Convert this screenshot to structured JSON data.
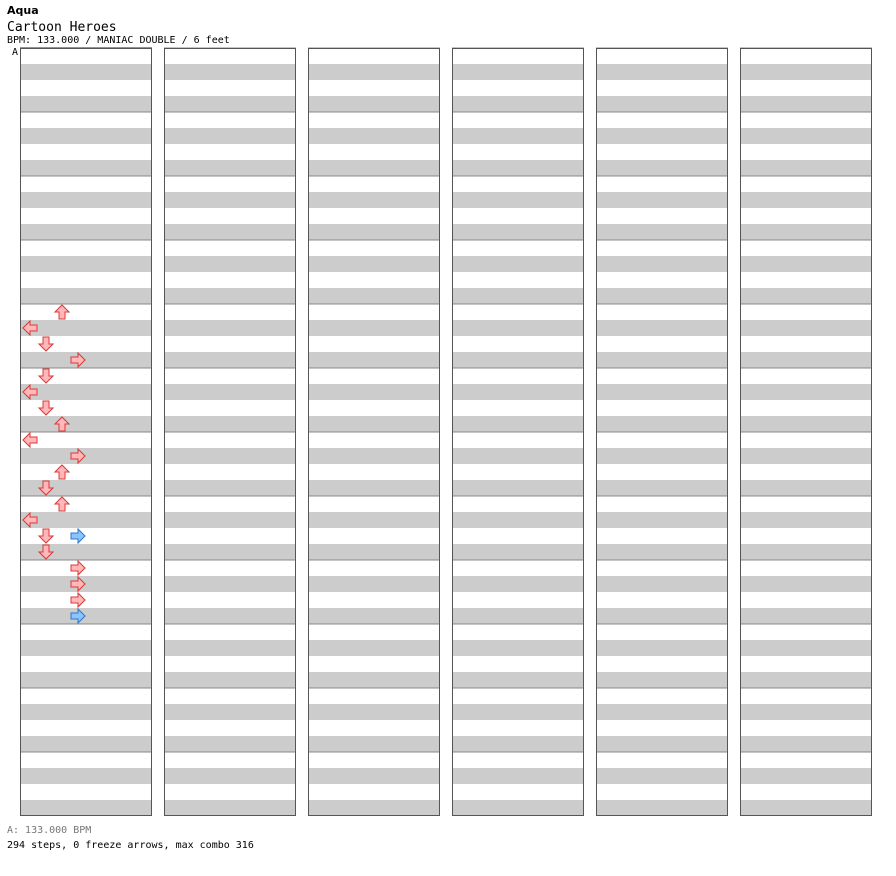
{
  "header": {
    "artist": "Aqua",
    "title": "Cartoon Heroes",
    "info": "BPM: 133.000 / MANIAC DOUBLE / 6 feet",
    "marker": "A"
  },
  "footer": {
    "bpm_line": "A: 133.000 BPM",
    "stats_line": "294 steps, 0 freeze arrows, max combo 316"
  },
  "colors": {
    "grid_gray": "#cccccc",
    "grid_white": "#ffffff",
    "border": "#555555",
    "quarter_fill": "#ffb7b7",
    "quarter_stroke": "#d83838",
    "eighth_fill": "#8cc4ff",
    "eighth_stroke": "#2a78c8"
  },
  "chart_data": {
    "type": "table",
    "columns": 6,
    "measures_per_column": 12,
    "total_measures": 64,
    "lanes": [
      "L",
      "D",
      "U",
      "R"
    ],
    "note_note": "each note: [measure, beat position 0-15 in 16ths, lane index 0=L 1=D 2=U 3=R, color q=red e=blue]",
    "notes": [
      [
        4,
        0,
        2,
        "q"
      ],
      [
        4,
        1,
        0,
        "q"
      ],
      [
        4,
        2,
        1,
        "q"
      ],
      [
        4,
        3,
        3,
        "q"
      ],
      [
        5,
        0,
        1,
        "q"
      ],
      [
        5,
        1,
        0,
        "q"
      ],
      [
        5,
        2,
        1,
        "q"
      ],
      [
        5,
        3,
        2,
        "q"
      ],
      [
        6,
        0,
        0,
        "q"
      ],
      [
        6,
        1,
        3,
        "q"
      ],
      [
        6,
        2,
        2,
        "q"
      ],
      [
        6,
        3,
        1,
        "q"
      ],
      [
        7,
        0,
        2,
        "q"
      ],
      [
        7,
        1,
        0,
        "q"
      ],
      [
        7,
        2,
        1,
        "q"
      ],
      [
        7,
        2,
        3,
        "e"
      ],
      [
        7,
        3,
        1,
        "q"
      ],
      [
        8,
        0,
        3,
        "q"
      ],
      [
        8,
        1,
        3,
        "q"
      ],
      [
        8,
        2,
        3,
        "q"
      ],
      [
        8,
        3,
        3,
        "e"
      ]
    ]
  }
}
